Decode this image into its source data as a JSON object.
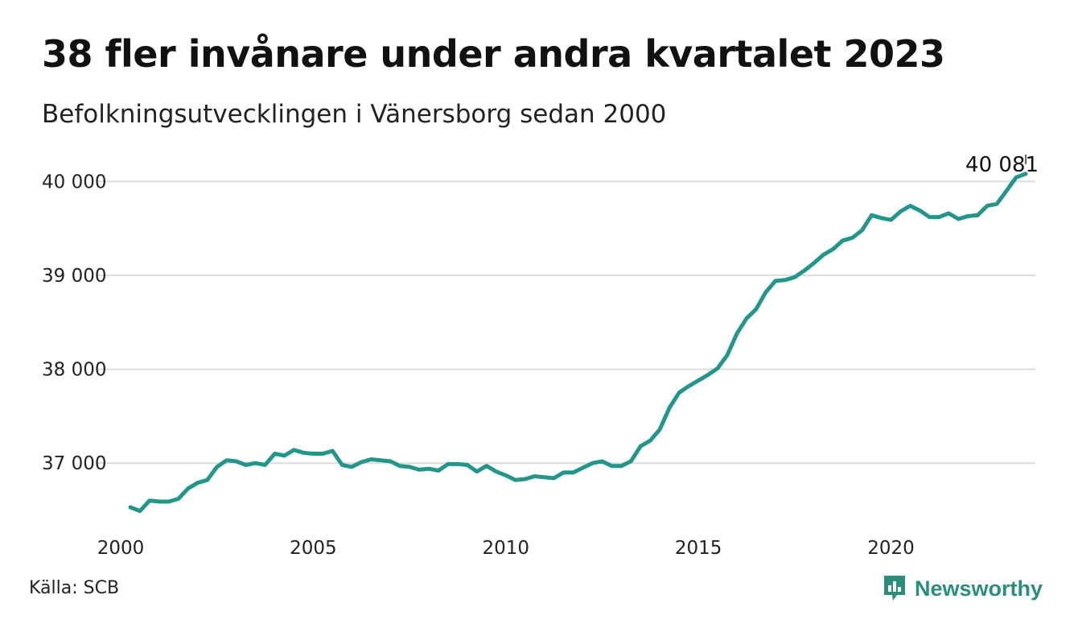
{
  "header": {
    "title": "38 fler invånare under andra kvartalet 2023",
    "subtitle": "Befolkningsutvecklingen i Vänersborg sedan 2000"
  },
  "footer": {
    "source": "Källa: SCB",
    "brand": "Newsworthy"
  },
  "colors": {
    "line": "#23968a",
    "grid": "#dcdcdc",
    "brand": "#2a8e7d"
  },
  "chart_data": {
    "type": "line",
    "x_start": "2000-Q1",
    "x_tick_labels": [
      "2000",
      "2005",
      "2010",
      "2015",
      "2020"
    ],
    "x_ticks": [
      2000,
      2005,
      2010,
      2015,
      2020
    ],
    "y_tick_labels": [
      "37 000",
      "38 000",
      "39 000",
      "40 000"
    ],
    "y_ticks": [
      37000,
      38000,
      39000,
      40000
    ],
    "xlim": [
      2000,
      2023.75
    ],
    "ylim": [
      36350,
      40200
    ],
    "grid": "horizontal",
    "annotation": {
      "label": "40 081",
      "value": 40081
    },
    "series": [
      {
        "x": [
          2000.25,
          2000.5,
          2000.75,
          2001,
          2001.25,
          2001.5,
          2001.75,
          2002,
          2002.25,
          2002.5,
          2002.75,
          2003,
          2003.25,
          2003.5,
          2003.75,
          2004,
          2004.25,
          2004.5,
          2004.75,
          2005,
          2005.25,
          2005.5,
          2005.75,
          2006,
          2006.25,
          2006.5,
          2006.75,
          2007,
          2007.25,
          2007.5,
          2007.75,
          2008,
          2008.25,
          2008.5,
          2008.75,
          2009,
          2009.25,
          2009.5,
          2009.75,
          2010,
          2010.25,
          2010.5,
          2010.75,
          2011,
          2011.25,
          2011.5,
          2011.75,
          2012,
          2012.25,
          2012.5,
          2012.75,
          2013,
          2013.25,
          2013.5,
          2013.75,
          2014,
          2014.25,
          2014.5,
          2014.75,
          2015,
          2015.25,
          2015.5,
          2015.75,
          2016,
          2016.25,
          2016.5,
          2016.75,
          2017,
          2017.25,
          2017.5,
          2017.75,
          2018,
          2018.25,
          2018.5,
          2018.75,
          2019,
          2019.25,
          2019.5,
          2019.75,
          2020,
          2020.25,
          2020.5,
          2020.75,
          2021,
          2021.25,
          2021.5,
          2021.75,
          2022,
          2022.25,
          2022.5,
          2022.75,
          2023,
          2023.25,
          2023.5
        ],
        "values": [
          36530,
          36490,
          36600,
          36590,
          36590,
          36620,
          36730,
          36790,
          36820,
          36960,
          37030,
          37020,
          36980,
          37000,
          36980,
          37100,
          37080,
          37140,
          37110,
          37100,
          37100,
          37130,
          36980,
          36960,
          37010,
          37040,
          37030,
          37020,
          36970,
          36960,
          36930,
          36940,
          36920,
          36990,
          36990,
          36980,
          36910,
          36970,
          36910,
          36870,
          36820,
          36830,
          36860,
          36850,
          36840,
          36900,
          36900,
          36950,
          37000,
          37020,
          36970,
          36970,
          37020,
          37180,
          37240,
          37360,
          37590,
          37750,
          37820,
          37880,
          37940,
          38010,
          38150,
          38380,
          38540,
          38640,
          38820,
          38940,
          38950,
          38980,
          39050,
          39130,
          39220,
          39280,
          39370,
          39400,
          39480,
          39640,
          39610,
          39590,
          39680,
          39740,
          39690,
          39620,
          39620,
          39660,
          39600,
          39630,
          39640,
          39740,
          39760,
          39900,
          40043,
          40081
        ]
      }
    ]
  }
}
